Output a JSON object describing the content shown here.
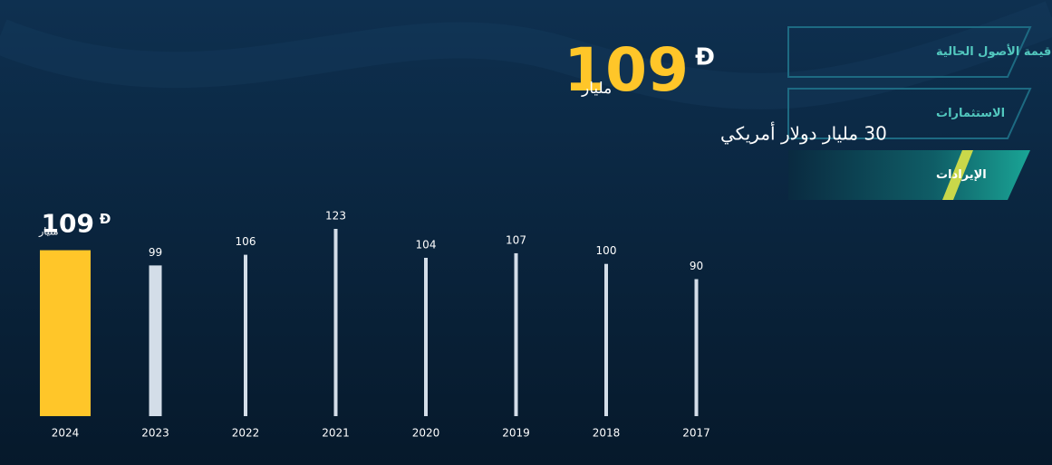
{
  "tabs": [
    "قيمة الأصول الحالية",
    "الاستثمارات",
    "الإيرادات"
  ],
  "active_tab": 2,
  "headline": {
    "value": "109",
    "currency": "Đ",
    "unit": "مليار",
    "subtitle": "30 مليار دولار أمريكي"
  },
  "chart_data": {
    "type": "bar",
    "categories": [
      "2024",
      "2023",
      "2022",
      "2021",
      "2020",
      "2019",
      "2018",
      "2017"
    ],
    "values": [
      109,
      99,
      106,
      123,
      104,
      107,
      100,
      90
    ],
    "highlight_index": 0,
    "highlight_currency": "Đ",
    "highlight_unit": "مليار",
    "highlight_color": "#ffc629",
    "color": "#d3dde8"
  }
}
